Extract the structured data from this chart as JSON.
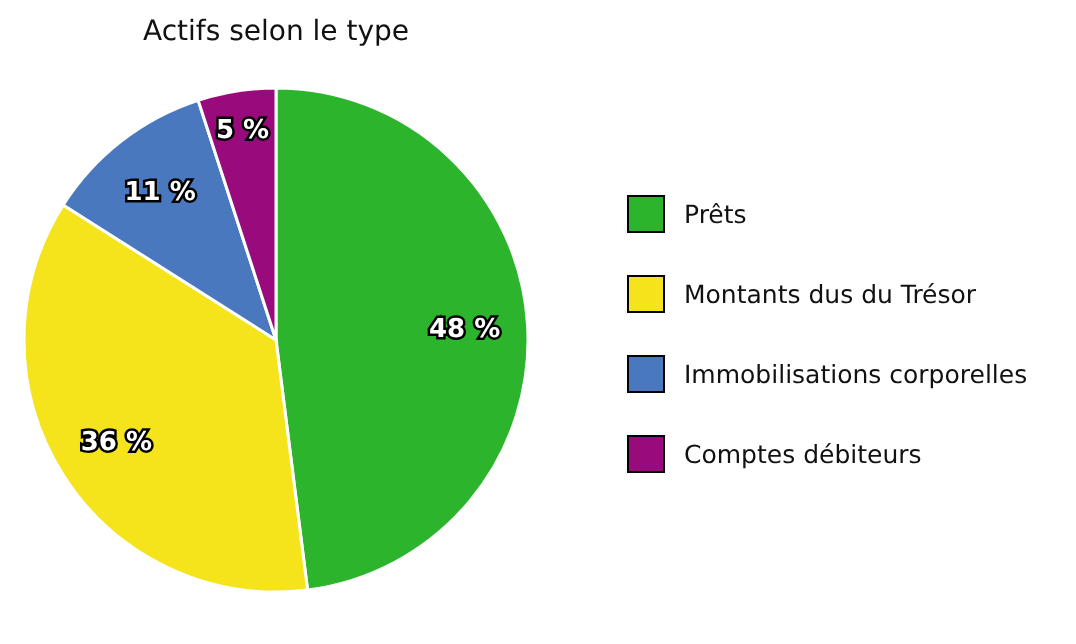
{
  "chart_data": {
    "type": "pie",
    "title": "Actifs selon le type",
    "categories": [
      "Prêts",
      "Montants dus du Trésor",
      "Immobilisations corporelles",
      "Comptes débiteurs"
    ],
    "values": [
      48,
      36,
      11,
      5
    ],
    "colors": [
      "#2cb52c",
      "#f5e31b",
      "#4a78be",
      "#990b7d"
    ],
    "value_labels": [
      "48 %",
      "36 %",
      "11 %",
      "5 %"
    ],
    "legend": "right"
  }
}
